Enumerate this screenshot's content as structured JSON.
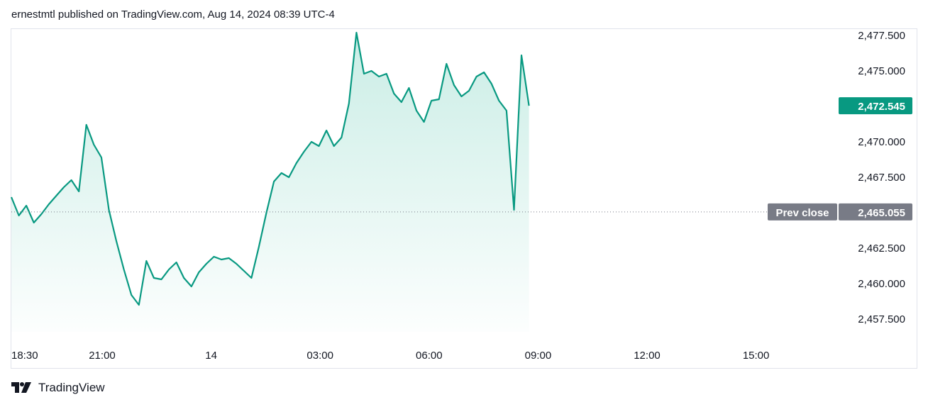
{
  "header": {
    "published_line": "ernestmtl published on TradingView.com, Aug 14, 2024 08:39 UTC-4"
  },
  "footer": {
    "brand": "TradingView",
    "logo_icon": "tradingview-logo-icon"
  },
  "colors": {
    "line": "#089981",
    "fill_top": "#9fdfd1",
    "last_label_bg": "#089981",
    "prev_label_bg": "#787b86"
  },
  "chart_data": {
    "type": "area",
    "x_tick_labels": [
      "18:30",
      "21:00",
      "14",
      "03:00",
      "06:00",
      "09:00",
      "12:00",
      "15:00"
    ],
    "y_tick_labels": [
      "2,477.500",
      "2,475.000",
      "2,470.000",
      "2,467.500",
      "2,462.500",
      "2,460.000",
      "2,457.500"
    ],
    "ylim": [
      2456.5,
      2478.6
    ],
    "last_price": 2472.545,
    "last_price_label": "2,472.545",
    "prev_close": 2465.055,
    "prev_close_label": "2,465.055",
    "prev_close_caption": "Prev close",
    "grid": false,
    "series": [
      {
        "values_hourly_from_18_30": [
          2466.1,
          2464.8,
          2465.5,
          2464.3,
          2464.9,
          2465.6,
          2466.2,
          2466.8,
          2467.3,
          2466.5,
          2471.2,
          2469.8,
          2468.9,
          2465.2,
          2463.0,
          2461.0,
          2459.2,
          2458.5,
          2461.6,
          2460.4,
          2460.3,
          2461.0,
          2461.5,
          2460.4,
          2459.8,
          2460.8,
          2461.4,
          2461.9,
          2461.7,
          2461.8,
          2461.4,
          2460.9,
          2460.4,
          2462.6,
          2465.0,
          2467.2,
          2467.8,
          2467.5,
          2468.5,
          2469.3,
          2470.0,
          2469.7,
          2470.8,
          2469.7,
          2470.3,
          2472.7,
          2477.7,
          2474.8,
          2475.0,
          2474.6,
          2474.8,
          2473.4,
          2472.8,
          2473.8,
          2472.2,
          2471.4,
          2472.9,
          2473.0,
          2475.5,
          2474.0,
          2473.2,
          2473.6,
          2474.6,
          2474.9,
          2474.1,
          2472.9,
          2472.2,
          2465.2,
          2476.1,
          2472.545
        ]
      }
    ]
  }
}
